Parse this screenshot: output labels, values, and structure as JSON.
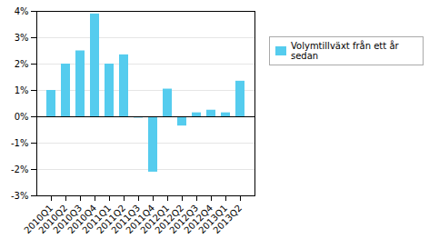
{
  "chart_data": {
    "type": "bar",
    "categories": [
      "2010Q1",
      "2010Q2",
      "2010Q3",
      "2010Q4",
      "2011Q1",
      "2011Q2",
      "2011Q3",
      "2011Q4",
      "2012Q1",
      "2012Q2",
      "2012Q3",
      "2012Q4",
      "2013Q1",
      "2013Q2"
    ],
    "series": [
      {
        "name": "Volymtillväxt från ett år sedan",
        "color": "#55CCEE",
        "values": [
          1.0,
          2.0,
          2.5,
          3.9,
          2.0,
          2.35,
          -0.05,
          -2.1,
          1.05,
          -0.35,
          0.15,
          0.25,
          0.15,
          1.35
        ]
      }
    ],
    "ylim": [
      -3,
      4
    ],
    "yticks": [
      {
        "value": -3,
        "label": "-3%"
      },
      {
        "value": -2,
        "label": "-2%"
      },
      {
        "value": -1,
        "label": "-1%"
      },
      {
        "value": 0,
        "label": "0%"
      },
      {
        "value": 1,
        "label": "1%"
      },
      {
        "value": 2,
        "label": "2%"
      },
      {
        "value": 3,
        "label": "3%"
      },
      {
        "value": 4,
        "label": "4%"
      }
    ],
    "grid": true,
    "legend": "right"
  }
}
